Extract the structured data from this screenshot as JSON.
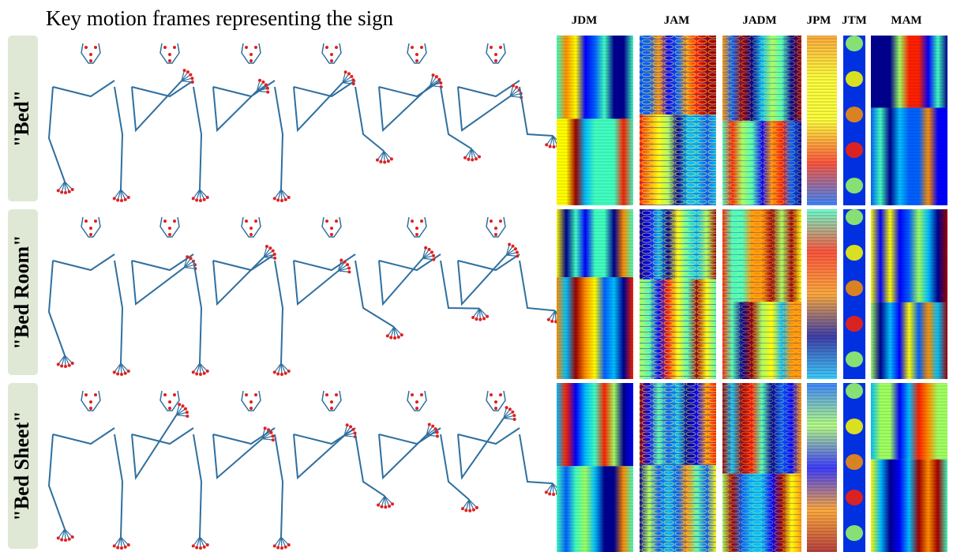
{
  "title": "Key motion frames representing the sign",
  "headers": [
    "JDM",
    "JAM",
    "JADM",
    "JPM",
    "JTM",
    "MAM"
  ],
  "rows": [
    {
      "label": "\"Bed\""
    },
    {
      "label": "\"Bed Room\""
    },
    {
      "label": "\"Bed Sheet\""
    }
  ]
}
